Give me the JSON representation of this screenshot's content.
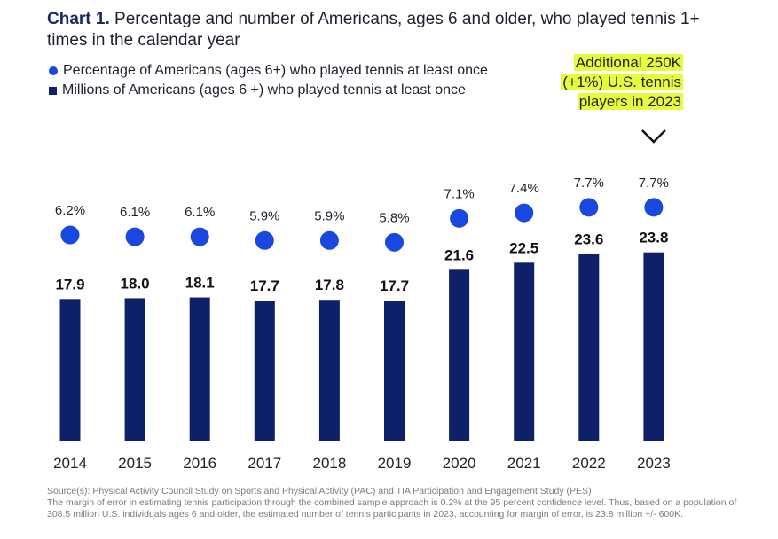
{
  "title": {
    "lead": "Chart 1.",
    "text": "Percentage and number of Americans, ages 6 and older, who played tennis 1+ times in the calendar year"
  },
  "legend": {
    "percentage": "Percentage of Americans (ages 6+) who played tennis at least once",
    "millions": "Millions of Americans (ages 6 +) who played tennis at least once"
  },
  "callout": {
    "line1": "Additional 250K",
    "line2": "(+1%) U.S. tennis",
    "line3": "players in 2023"
  },
  "footnote": {
    "source": "Source(s): Physical Activity Council Study on Sports and Physical Activity (PAC) and TIA Participation and Engagement Study (PES)",
    "margin": "The margin of error in estimating tennis participation through the combined sample approach is 0.2% at the 95 percent confidence level. Thus, based on a population of 308.5 million U.S. individuals ages 6 and older, the estimated number of tennis participants in 2023, accounting for margin of error, is 23.8 million +/- 600K."
  },
  "colors": {
    "bar": "#0e2168",
    "dot": "#1848e0",
    "highlight": "#e6fb3a"
  },
  "chart_data": {
    "type": "bar",
    "categories": [
      "2014",
      "2015",
      "2016",
      "2017",
      "2018",
      "2019",
      "2020",
      "2021",
      "2022",
      "2023"
    ],
    "series": [
      {
        "name": "Millions of Americans (ages 6 +) who played tennis at least once",
        "values": [
          17.9,
          18.0,
          18.1,
          17.7,
          17.8,
          17.7,
          21.6,
          22.5,
          23.6,
          23.8
        ],
        "labels": [
          "17.9",
          "18.0",
          "18.1",
          "17.7",
          "17.8",
          "17.7",
          "21.6",
          "22.5",
          "23.6",
          "23.8"
        ]
      },
      {
        "name": "Percentage of Americans (ages 6+) who played tennis at least once",
        "values": [
          6.2,
          6.1,
          6.1,
          5.9,
          5.9,
          5.8,
          7.1,
          7.4,
          7.7,
          7.7
        ],
        "labels": [
          "6.2%",
          "6.1%",
          "6.1%",
          "5.9%",
          "5.9%",
          "5.8%",
          "7.1%",
          "7.4%",
          "7.7%",
          "7.7%"
        ]
      }
    ],
    "highlight_category": "2023",
    "grid": false
  }
}
